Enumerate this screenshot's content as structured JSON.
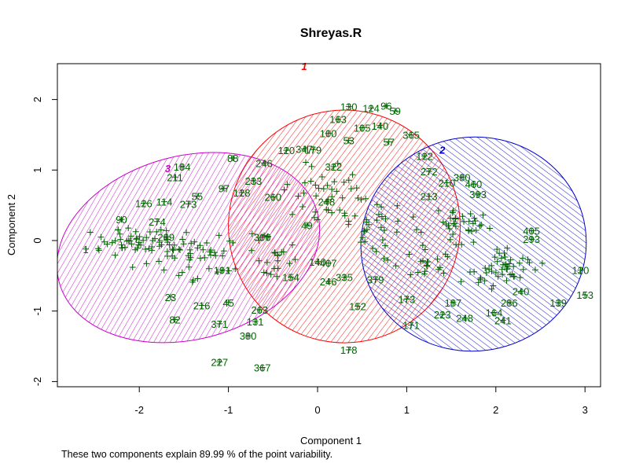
{
  "chart_data": {
    "type": "scatter",
    "title": "Shreyas.R",
    "xlabel": "Component 1",
    "ylabel": "Component 2",
    "xlim": [
      -2.8,
      3.2
    ],
    "ylim": [
      -2.05,
      2.5
    ],
    "x_ticks": [
      -2,
      -1,
      0,
      1,
      2,
      3
    ],
    "y_ticks": [
      -2,
      -1,
      0,
      1,
      2
    ],
    "note": "These two components explain 89.99 % of the point variability.",
    "clusters": [
      {
        "label": "1",
        "color": "#ff0000",
        "center": [
          0.3,
          0.2
        ],
        "label_pos": [
          -0.15,
          2.42
        ],
        "rx": 1.3,
        "ry": 1.65,
        "angle_deg": -8
      },
      {
        "label": "2",
        "color": "#0000cd",
        "center": [
          1.75,
          -0.05
        ],
        "label_pos": [
          1.4,
          1.23
        ],
        "rx": 1.2,
        "ry": 1.6,
        "angle_deg": 82
      },
      {
        "label": "3",
        "color": "#cc00cc",
        "center": [
          -1.45,
          -0.1
        ],
        "label_pos": [
          -1.68,
          0.97
        ],
        "rx": 1.5,
        "ry": 1.3,
        "angle_deg": -15
      }
    ],
    "points": [
      {
        "label": "130",
        "x": 0.35,
        "y": 1.9
      },
      {
        "label": "124",
        "x": 0.6,
        "y": 1.88
      },
      {
        "label": "96",
        "x": 0.77,
        "y": 1.91
      },
      {
        "label": "59",
        "x": 0.87,
        "y": 1.84
      },
      {
        "label": "163",
        "x": 0.23,
        "y": 1.72
      },
      {
        "label": "105",
        "x": 0.5,
        "y": 1.6
      },
      {
        "label": "140",
        "x": 0.7,
        "y": 1.63
      },
      {
        "label": "100",
        "x": 0.12,
        "y": 1.52
      },
      {
        "label": "365",
        "x": 1.05,
        "y": 1.5
      },
      {
        "label": "57",
        "x": 0.8,
        "y": 1.4
      },
      {
        "label": "53",
        "x": 0.35,
        "y": 1.42
      },
      {
        "label": "122",
        "x": 1.2,
        "y": 1.2
      },
      {
        "label": "88",
        "x": -0.95,
        "y": 1.17
      },
      {
        "label": "184",
        "x": -1.52,
        "y": 1.05
      },
      {
        "label": "246",
        "x": -0.6,
        "y": 1.1
      },
      {
        "label": "347",
        "x": -0.15,
        "y": 1.3
      },
      {
        "label": "179",
        "x": -0.05,
        "y": 1.29
      },
      {
        "label": "120",
        "x": -0.35,
        "y": 1.28
      },
      {
        "label": "322",
        "x": 0.18,
        "y": 1.05
      },
      {
        "label": "233",
        "x": -0.72,
        "y": 0.85
      },
      {
        "label": "272",
        "x": 1.25,
        "y": 0.98
      },
      {
        "label": "210",
        "x": 1.45,
        "y": 0.82
      },
      {
        "label": "380",
        "x": 1.62,
        "y": 0.9
      },
      {
        "label": "460",
        "x": 1.75,
        "y": 0.8
      },
      {
        "label": "393",
        "x": 1.8,
        "y": 0.66
      },
      {
        "label": "213",
        "x": 1.25,
        "y": 0.63
      },
      {
        "label": "126",
        "x": -1.95,
        "y": 0.53
      },
      {
        "label": "114",
        "x": -1.72,
        "y": 0.55
      },
      {
        "label": "273",
        "x": -1.45,
        "y": 0.52
      },
      {
        "label": "55",
        "x": -1.35,
        "y": 0.63
      },
      {
        "label": "97",
        "x": -1.05,
        "y": 0.74
      },
      {
        "label": "128",
        "x": -0.85,
        "y": 0.68
      },
      {
        "label": "211",
        "x": -1.6,
        "y": 0.9
      },
      {
        "label": "90",
        "x": -2.2,
        "y": 0.3
      },
      {
        "label": "274",
        "x": -1.8,
        "y": 0.27
      },
      {
        "label": "49",
        "x": -0.12,
        "y": 0.22
      },
      {
        "label": "289",
        "x": -1.7,
        "y": 0.05
      },
      {
        "label": "306",
        "x": -0.62,
        "y": 0.05
      },
      {
        "label": "405",
        "x": 2.4,
        "y": 0.14
      },
      {
        "label": "293",
        "x": 2.4,
        "y": 0.02
      },
      {
        "label": "140",
        "x": 0.0,
        "y": -0.3
      },
      {
        "label": "407",
        "x": 0.12,
        "y": -0.32
      },
      {
        "label": "246",
        "x": 0.12,
        "y": -0.58
      },
      {
        "label": "335",
        "x": 0.3,
        "y": -0.52
      },
      {
        "label": "379",
        "x": 0.65,
        "y": -0.55
      },
      {
        "label": "152",
        "x": 0.45,
        "y": -0.93
      },
      {
        "label": "178",
        "x": 0.35,
        "y": -1.55
      },
      {
        "label": "120",
        "x": 2.95,
        "y": -0.42
      },
      {
        "label": "153",
        "x": 3.0,
        "y": -0.77
      },
      {
        "label": "139",
        "x": 2.7,
        "y": -0.88
      },
      {
        "label": "240",
        "x": 2.28,
        "y": -0.72
      },
      {
        "label": "286",
        "x": 2.15,
        "y": -0.88
      },
      {
        "label": "164",
        "x": 1.98,
        "y": -1.02
      },
      {
        "label": "241",
        "x": 2.08,
        "y": -1.13
      },
      {
        "label": "248",
        "x": 1.65,
        "y": -1.1
      },
      {
        "label": "223",
        "x": 1.4,
        "y": -1.05
      },
      {
        "label": "187",
        "x": 1.52,
        "y": -0.88
      },
      {
        "label": "173",
        "x": 1.0,
        "y": -0.83
      },
      {
        "label": "171",
        "x": 1.05,
        "y": -1.2
      },
      {
        "label": "23",
        "x": -1.65,
        "y": -0.8
      },
      {
        "label": "82",
        "x": -1.6,
        "y": -1.12
      },
      {
        "label": "371",
        "x": -1.1,
        "y": -1.18
      },
      {
        "label": "131",
        "x": -0.7,
        "y": -1.15
      },
      {
        "label": "380",
        "x": -0.78,
        "y": -1.35
      },
      {
        "label": "227",
        "x": -1.1,
        "y": -1.72
      },
      {
        "label": "367",
        "x": -0.62,
        "y": -1.8
      },
      {
        "label": "263",
        "x": -0.65,
        "y": -0.98
      },
      {
        "label": "216",
        "x": -1.3,
        "y": -0.92
      },
      {
        "label": "45",
        "x": -1.0,
        "y": -0.88
      },
      {
        "label": "191",
        "x": -1.07,
        "y": -0.42
      },
      {
        "label": "1",
        "x": -2.6,
        "y": -0.12
      },
      {
        "label": "154",
        "x": -0.3,
        "y": -0.52
      },
      {
        "label": "260",
        "x": -0.5,
        "y": 0.62
      },
      {
        "label": "248",
        "x": 0.1,
        "y": 0.55
      }
    ],
    "clouds": [
      {
        "center": [
          -2.0,
          -0.05
        ],
        "spread": [
          0.42,
          0.22
        ],
        "count": 60
      },
      {
        "center": [
          -1.3,
          -0.25
        ],
        "spread": [
          0.4,
          0.3
        ],
        "count": 40
      },
      {
        "center": [
          -0.5,
          -0.2
        ],
        "spread": [
          0.25,
          0.25
        ],
        "count": 24
      },
      {
        "center": [
          0.1,
          0.6
        ],
        "spread": [
          0.45,
          0.45
        ],
        "count": 40
      },
      {
        "center": [
          0.65,
          0.2
        ],
        "spread": [
          0.3,
          0.4
        ],
        "count": 30
      },
      {
        "center": [
          1.55,
          0.2
        ],
        "spread": [
          0.35,
          0.3
        ],
        "count": 36
      },
      {
        "center": [
          2.1,
          -0.4
        ],
        "spread": [
          0.4,
          0.25
        ],
        "count": 48
      },
      {
        "center": [
          1.2,
          -0.35
        ],
        "spread": [
          0.3,
          0.25
        ],
        "count": 20
      }
    ]
  }
}
